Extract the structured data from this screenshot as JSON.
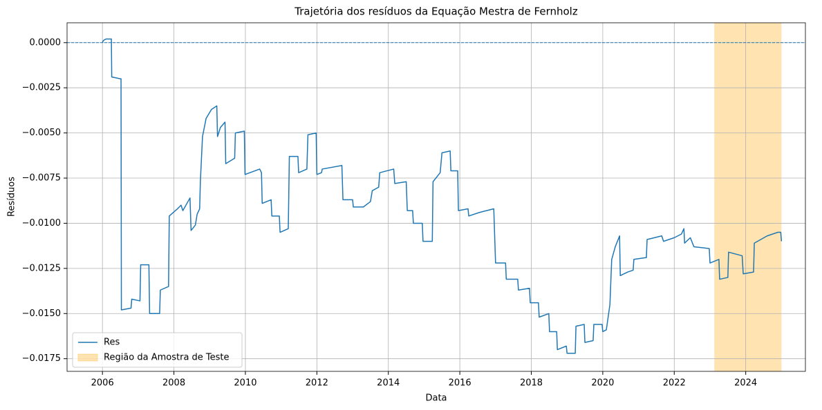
{
  "chart_data": {
    "type": "line",
    "title": "Trajetória dos resíduos da Equação Mestra de Fernholz",
    "x_label": "Data",
    "y_label": "Resíduos",
    "series": [
      {
        "name": "Res",
        "color": "#1f77b4",
        "x": [
          2006.0,
          2006.02,
          2006.05,
          2006.1,
          2006.25,
          2006.26,
          2006.5,
          2006.52,
          2006.53,
          2006.8,
          2006.82,
          2007.05,
          2007.07,
          2007.3,
          2007.32,
          2007.6,
          2007.62,
          2007.85,
          2007.87,
          2008.1,
          2008.2,
          2008.25,
          2008.45,
          2008.48,
          2008.6,
          2008.65,
          2008.72,
          2008.74,
          2008.8,
          2008.9,
          2009.05,
          2009.2,
          2009.22,
          2009.3,
          2009.43,
          2009.45,
          2009.7,
          2009.72,
          2009.97,
          2009.99,
          2010.4,
          2010.45,
          2010.47,
          2010.72,
          2010.74,
          2010.95,
          2010.97,
          2011.2,
          2011.23,
          2011.47,
          2011.49,
          2011.72,
          2011.75,
          2011.98,
          2012.0,
          2012.13,
          2012.15,
          2012.7,
          2012.73,
          2013.0,
          2013.02,
          2013.3,
          2013.5,
          2013.55,
          2013.73,
          2013.76,
          2014.15,
          2014.18,
          2014.5,
          2014.53,
          2014.68,
          2014.7,
          2014.95,
          2014.97,
          2015.23,
          2015.25,
          2015.45,
          2015.5,
          2015.73,
          2015.75,
          2015.94,
          2015.96,
          2016.23,
          2016.25,
          2016.55,
          2016.95,
          2017.0,
          2017.28,
          2017.3,
          2017.62,
          2017.64,
          2017.95,
          2017.97,
          2018.2,
          2018.22,
          2018.49,
          2018.51,
          2018.71,
          2018.73,
          2018.98,
          2019.0,
          2019.23,
          2019.25,
          2019.48,
          2019.5,
          2019.73,
          2019.75,
          2019.98,
          2020.0,
          2020.1,
          2020.2,
          2020.25,
          2020.35,
          2020.47,
          2020.49,
          2020.7,
          2020.85,
          2020.87,
          2021.22,
          2021.24,
          2021.65,
          2021.7,
          2022.0,
          2022.2,
          2022.27,
          2022.29,
          2022.45,
          2022.55,
          2022.98,
          2023.0,
          2023.25,
          2023.27,
          2023.5,
          2023.52,
          2023.9,
          2023.93,
          2024.22,
          2024.24,
          2024.6,
          2024.9,
          2024.98,
          2025.0
        ],
        "values": [
          0,
          0.0001,
          0.00015,
          0.0002,
          0.0002,
          -0.0019,
          -0.002,
          -0.002,
          -0.0148,
          -0.0147,
          -0.0142,
          -0.0143,
          -0.0123,
          -0.0123,
          -0.015,
          -0.015,
          -0.0137,
          -0.0135,
          -0.0096,
          -0.0092,
          -0.009,
          -0.0093,
          -0.0086,
          -0.0104,
          -0.0101,
          -0.0095,
          -0.0092,
          -0.0077,
          -0.0052,
          -0.0042,
          -0.0037,
          -0.0035,
          -0.0052,
          -0.0047,
          -0.0044,
          -0.0067,
          -0.0064,
          -0.005,
          -0.0049,
          -0.0073,
          -0.007,
          -0.0072,
          -0.0089,
          -0.0087,
          -0.0096,
          -0.0096,
          -0.0105,
          -0.0103,
          -0.0063,
          -0.0063,
          -0.0072,
          -0.007,
          -0.0051,
          -0.005,
          -0.0073,
          -0.0072,
          -0.007,
          -0.0068,
          -0.0087,
          -0.0087,
          -0.0091,
          -0.0091,
          -0.0088,
          -0.0082,
          -0.008,
          -0.0072,
          -0.007,
          -0.0078,
          -0.0077,
          -0.0093,
          -0.0093,
          -0.01,
          -0.01,
          -0.011,
          -0.011,
          -0.0077,
          -0.0072,
          -0.0061,
          -0.006,
          -0.0071,
          -0.0071,
          -0.0093,
          -0.0092,
          -0.0096,
          -0.0094,
          -0.0092,
          -0.0122,
          -0.0122,
          -0.0131,
          -0.0131,
          -0.0137,
          -0.0136,
          -0.0144,
          -0.0144,
          -0.0152,
          -0.015,
          -0.016,
          -0.016,
          -0.017,
          -0.0168,
          -0.0172,
          -0.0172,
          -0.0157,
          -0.0156,
          -0.0166,
          -0.0165,
          -0.0156,
          -0.0156,
          -0.016,
          -0.0159,
          -0.0145,
          -0.012,
          -0.0113,
          -0.0107,
          -0.0129,
          -0.0127,
          -0.0126,
          -0.012,
          -0.0119,
          -0.0109,
          -0.0107,
          -0.011,
          -0.0108,
          -0.0106,
          -0.0103,
          -0.0111,
          -0.0108,
          -0.0113,
          -0.0114,
          -0.0122,
          -0.012,
          -0.0131,
          -0.013,
          -0.0116,
          -0.0118,
          -0.0128,
          -0.0127,
          -0.0111,
          -0.0107,
          -0.0105,
          -0.0105,
          -0.011
        ]
      }
    ],
    "span": {
      "name": "Região da Amostra de Teste",
      "color": "#ffa500",
      "x": [
        2023.12,
        2025.0
      ]
    },
    "hline": {
      "value": 0,
      "color": "#1f77b4"
    },
    "xlim": [
      2005.01,
      2025.67
    ],
    "ylim": [
      -0.0182,
      0.0011
    ],
    "xticks": [
      2006,
      2008,
      2010,
      2012,
      2014,
      2016,
      2018,
      2020,
      2022,
      2024
    ],
    "yticks": [
      {
        "value": 0,
        "label": "0.0000"
      },
      {
        "value": -0.0025,
        "label": "−0.0025"
      },
      {
        "value": -0.005,
        "label": "−0.0050"
      },
      {
        "value": -0.0075,
        "label": "−0.0075"
      },
      {
        "value": -0.01,
        "label": "−0.0100"
      },
      {
        "value": -0.0125,
        "label": "−0.0125"
      },
      {
        "value": -0.015,
        "label": "−0.0150"
      },
      {
        "value": -0.0175,
        "label": "−0.0175"
      }
    ],
    "grid": true,
    "legend": "lower-left"
  }
}
